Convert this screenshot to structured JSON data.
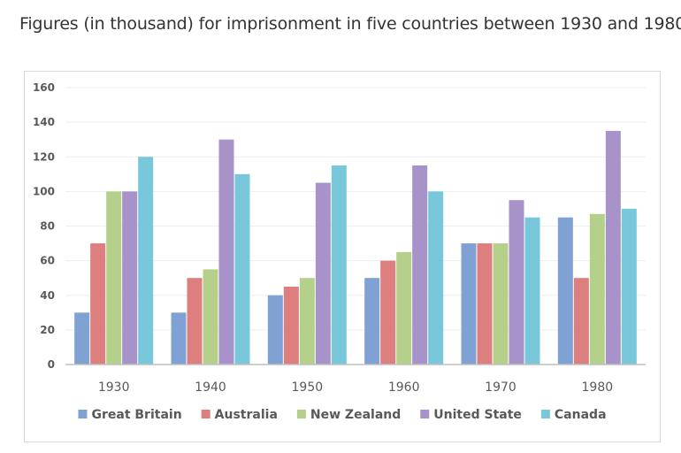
{
  "page": {
    "title": "Figures (in thousand) for imprisonment in five countries between 1930 and 1980."
  },
  "chart_data": {
    "type": "bar",
    "title": "",
    "xlabel": "",
    "ylabel": "",
    "ylim": [
      0,
      160
    ],
    "yticks": [
      0,
      20,
      40,
      60,
      80,
      100,
      120,
      140,
      160
    ],
    "grid": true,
    "legend_position": "bottom",
    "categories": [
      "1930",
      "1940",
      "1950",
      "1960",
      "1970",
      "1980"
    ],
    "series": [
      {
        "name": "Great Britain",
        "color": "#7fa1d3",
        "values": [
          30,
          30,
          40,
          50,
          70,
          85
        ]
      },
      {
        "name": "Australia",
        "color": "#dd7f7e",
        "values": [
          70,
          50,
          45,
          60,
          70,
          50
        ]
      },
      {
        "name": "New Zealand",
        "color": "#b5d08a",
        "values": [
          100,
          55,
          50,
          65,
          70,
          87
        ]
      },
      {
        "name": "United State",
        "color": "#a792c9",
        "values": [
          100,
          130,
          105,
          115,
          95,
          135
        ]
      },
      {
        "name": "Canada",
        "color": "#79c7da",
        "values": [
          120,
          110,
          115,
          100,
          85,
          90
        ]
      }
    ]
  }
}
